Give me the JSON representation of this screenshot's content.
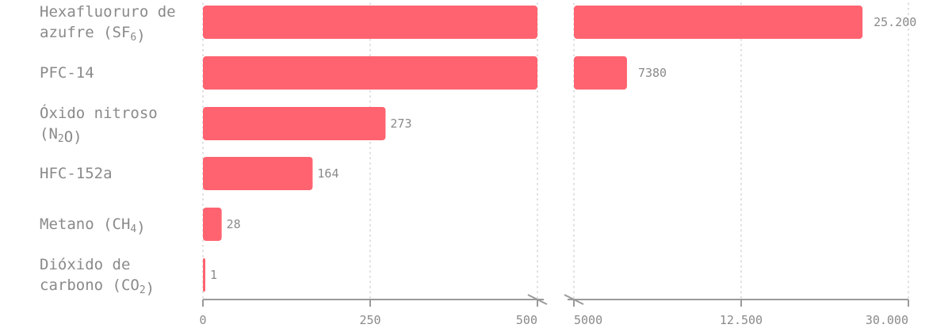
{
  "chart_data": {
    "type": "bar",
    "orientation": "horizontal",
    "categories": [
      {
        "lines": [
          [
            {
              "t": "Hexafluoruro de"
            }
          ],
          [
            {
              "t": "azufre (SF"
            },
            {
              "t": "6",
              "sub": true
            },
            {
              "t": ")"
            }
          ]
        ]
      },
      {
        "lines": [
          [
            {
              "t": "PFC-14"
            }
          ]
        ]
      },
      {
        "lines": [
          [
            {
              "t": "Óxido nitroso"
            }
          ],
          [
            {
              "t": "(N"
            },
            {
              "t": "2",
              "sub": true
            },
            {
              "t": "O)"
            }
          ]
        ]
      },
      {
        "lines": [
          [
            {
              "t": "HFC-152a"
            }
          ]
        ]
      },
      {
        "lines": [
          [
            {
              "t": "Metano (CH"
            },
            {
              "t": "4",
              "sub": true
            },
            {
              "t": ")"
            }
          ]
        ]
      },
      {
        "lines": [
          [
            {
              "t": "Dióxido de"
            }
          ],
          [
            {
              "t": "carbono (CO"
            },
            {
              "t": "2",
              "sub": true
            },
            {
              "t": ")"
            }
          ]
        ]
      }
    ],
    "values": [
      25200,
      7380,
      273,
      164,
      28,
      1
    ],
    "value_labels": [
      "25.200",
      "7380",
      "273",
      "164",
      "28",
      "1"
    ],
    "axis": {
      "broken": true,
      "segment1": {
        "domain": [
          0,
          500
        ],
        "ticks": [
          0,
          250,
          500
        ],
        "tick_labels": [
          "0",
          "250",
          "500"
        ]
      },
      "segment2": {
        "domain": [
          5000,
          30000
        ],
        "ticks": [
          5000,
          12500,
          30000
        ],
        "tick_labels": [
          "5000",
          "12.500",
          "30.000"
        ]
      }
    },
    "grid": true,
    "colors": {
      "bar": "#ff6370",
      "text": "#8a8a8a",
      "axis": "#9a9a9a",
      "grid": "#c8c8c8"
    }
  }
}
